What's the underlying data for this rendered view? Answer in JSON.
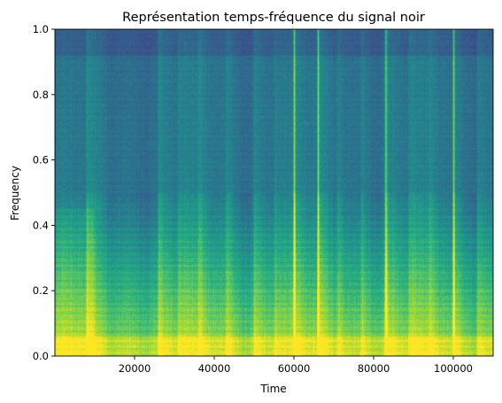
{
  "chart_data": {
    "type": "heatmap",
    "title": "Représentation temps-fréquence du signal noir",
    "xlabel": "Time",
    "ylabel": "Frequency",
    "xlim": [
      0,
      110000
    ],
    "ylim": [
      0,
      1.0
    ],
    "x_ticks": [
      20000,
      40000,
      60000,
      80000,
      100000
    ],
    "x_tick_labels": [
      "20000",
      "40000",
      "60000",
      "80000",
      "100000"
    ],
    "y_ticks": [
      0.0,
      0.2,
      0.4,
      0.6,
      0.8,
      1.0
    ],
    "y_tick_labels": [
      "0.0",
      "0.2",
      "0.4",
      "0.6",
      "0.8",
      "1.0"
    ],
    "colormap": "viridis",
    "grid": false,
    "legend": "none",
    "transient_times": [
      8000,
      26000,
      31000,
      36000,
      43000,
      50000,
      55000,
      60000,
      66000,
      71000,
      77000,
      83000,
      89000,
      94000,
      100000,
      106000
    ],
    "strong_transient_times": [
      60000,
      66000,
      83000,
      100000
    ],
    "top_band_frequency": [
      0.92,
      1.0
    ],
    "colors": {
      "low_intensity": "#2b6f8e",
      "mid_intensity": "#21a185",
      "high_intensity": "#d6e22b"
    }
  }
}
